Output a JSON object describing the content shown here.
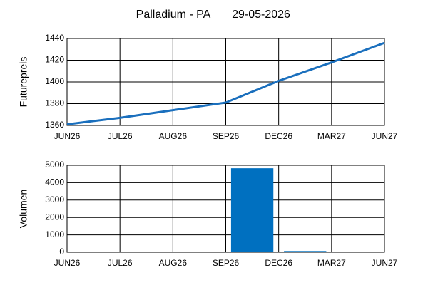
{
  "chart_data": [
    {
      "type": "line",
      "title": "Palladium - PA",
      "subtitle": "29-05-2026",
      "ylabel": "Futurepreis",
      "categories": [
        "JUN26",
        "JUL26",
        "AUG26",
        "SEP26",
        "DEC26",
        "MAR27",
        "JUN27"
      ],
      "values": [
        1361,
        1367,
        1374,
        1381,
        1401,
        1418,
        1436
      ],
      "color": "#1a6fbd",
      "ylim": [
        1360,
        1440
      ],
      "yticks": [
        1360,
        1380,
        1400,
        1420,
        1440
      ],
      "grid": true
    },
    {
      "type": "bar",
      "ylabel": "Volumen",
      "categories": [
        "JUN26",
        "JUL26",
        "AUG26",
        "SEP26",
        "DEC26",
        "MAR27",
        "JUN27"
      ],
      "values": [
        20,
        15,
        20,
        4830,
        70,
        15,
        null
      ],
      "color": "#0070c0",
      "ylim": [
        0,
        5000
      ],
      "yticks": [
        0,
        1000,
        2000,
        3000,
        4000,
        5000
      ],
      "grid": true
    }
  ]
}
